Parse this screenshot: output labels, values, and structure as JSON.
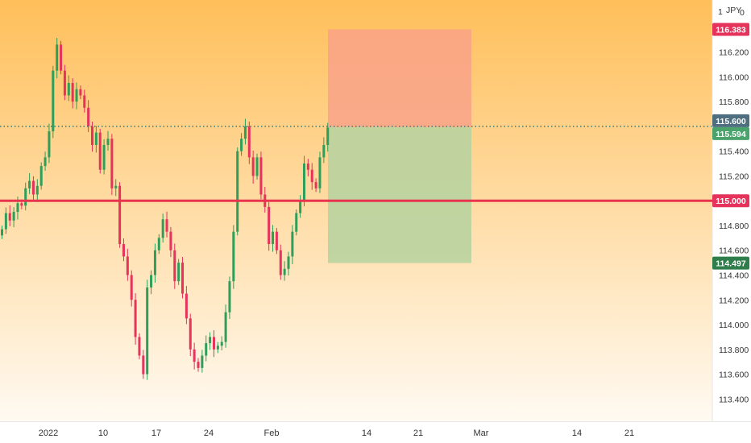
{
  "header": {
    "axis_left": "1",
    "currency": "JPY",
    "axis_right": "0"
  },
  "colors": {
    "bg_top": "#ffbf5a",
    "bg_bottom": "#fffaf2",
    "up": "#2e9e5a",
    "down": "#e5335c",
    "stop_zone": "#f9a08a",
    "target_zone": "#b9d3a0",
    "level_line": "#e8344e",
    "price_line": "#3a7a74",
    "tag_stop": "#e5335c",
    "tag_current": "#4f6f80",
    "tag_entry": "#4aa36b",
    "tag_level": "#e5335c",
    "tag_target": "#2e7d4a"
  },
  "price_tags": {
    "stop": "116.383",
    "current": "115.600",
    "entry": "115.594",
    "level": "115.000",
    "target": "114.497"
  },
  "chart_data": {
    "type": "candlestick",
    "title": "",
    "ylabel": "JPY",
    "ylim": [
      113.22,
      116.62
    ],
    "y_ticks": [
      "116.200",
      "116.000",
      "115.800",
      "115.600",
      "115.400",
      "115.200",
      "115.000",
      "114.800",
      "114.600",
      "114.400",
      "114.200",
      "114.000",
      "113.800",
      "113.600",
      "113.400"
    ],
    "x_ticks": [
      "2022",
      "10",
      "17",
      "24",
      "Feb",
      "14",
      "21",
      "Mar",
      "14",
      "21"
    ],
    "grid": false,
    "horizontal_level": 115.0,
    "current_price": 115.6,
    "position": {
      "entry": 115.594,
      "stop": 116.383,
      "target": 114.497
    },
    "closes": [
      114.77,
      114.9,
      114.84,
      114.91,
      114.98,
      114.96,
      115.1,
      115.16,
      115.05,
      115.12,
      115.28,
      115.35,
      115.56,
      116.05,
      116.26,
      116.05,
      115.85,
      115.95,
      115.8,
      115.9,
      115.85,
      115.75,
      115.6,
      115.45,
      115.55,
      115.25,
      115.45,
      115.5,
      115.1,
      115.12,
      114.65,
      114.55,
      114.4,
      114.2,
      113.9,
      113.75,
      113.6,
      114.3,
      114.4,
      114.6,
      114.7,
      114.85,
      114.75,
      114.6,
      114.35,
      114.5,
      114.25,
      114.05,
      113.8,
      113.7,
      113.65,
      113.75,
      113.85,
      113.9,
      113.8,
      113.83,
      113.86,
      114.1,
      114.35,
      114.75,
      115.4,
      115.5,
      115.6,
      115.35,
      115.2,
      115.35,
      115.05,
      114.95,
      114.65,
      114.75,
      114.6,
      114.4,
      114.45,
      114.55,
      114.75,
      114.9,
      115.0,
      115.3,
      115.25,
      115.15,
      115.1,
      115.35,
      115.45,
      115.59
    ]
  }
}
